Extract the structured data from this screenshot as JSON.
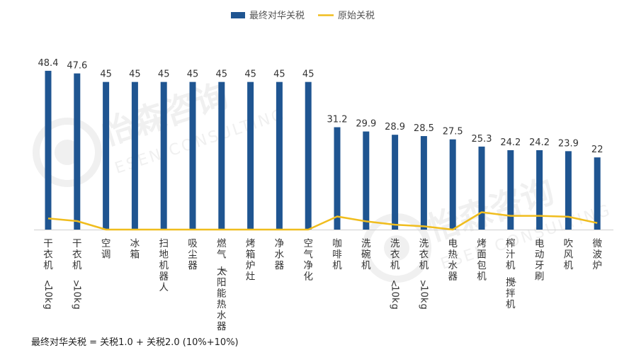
{
  "chart_data": {
    "type": "bar",
    "categories": [
      "干衣机<10kg",
      "干衣机>10kg",
      "空调",
      "冰箱",
      "扫地机器人",
      "吸尘器",
      "燃气/太阳能热水器",
      "烤箱炉灶",
      "净水器",
      "空气净化",
      "咖啡机",
      "洗碗机",
      "洗衣机<10kg",
      "洗衣机>10kg",
      "电热水器",
      "烤面包机",
      "榨汁机/搅拌机",
      "电动牙刷",
      "吹风机",
      "微波炉"
    ],
    "series": [
      {
        "name": "最终对华关税",
        "type": "bar",
        "color": "#1f5591",
        "values": [
          48.4,
          47.6,
          45,
          45,
          45,
          45,
          45,
          45,
          45,
          45,
          31.2,
          29.9,
          28.9,
          28.5,
          27.5,
          25.3,
          24.2,
          24.2,
          23.9,
          22
        ]
      },
      {
        "name": "原始关税",
        "type": "line",
        "color": "#f0bd1e",
        "values": [
          3.4,
          2.6,
          0,
          0,
          0,
          0,
          0,
          0,
          0,
          0,
          4,
          2.5,
          1.5,
          1,
          0,
          5.3,
          4.2,
          4.2,
          3.9,
          2
        ]
      }
    ],
    "ylim": [
      0,
      52
    ],
    "data_labels": true,
    "legend_position": "top-center",
    "grid": false
  },
  "watermark": {
    "brand_cn": "怡森咨询",
    "brand_en": "ESEN CONSULTING"
  },
  "footnote": "最终对华关税 = 关税1.0 + 关税2.0 (10%+10%)"
}
